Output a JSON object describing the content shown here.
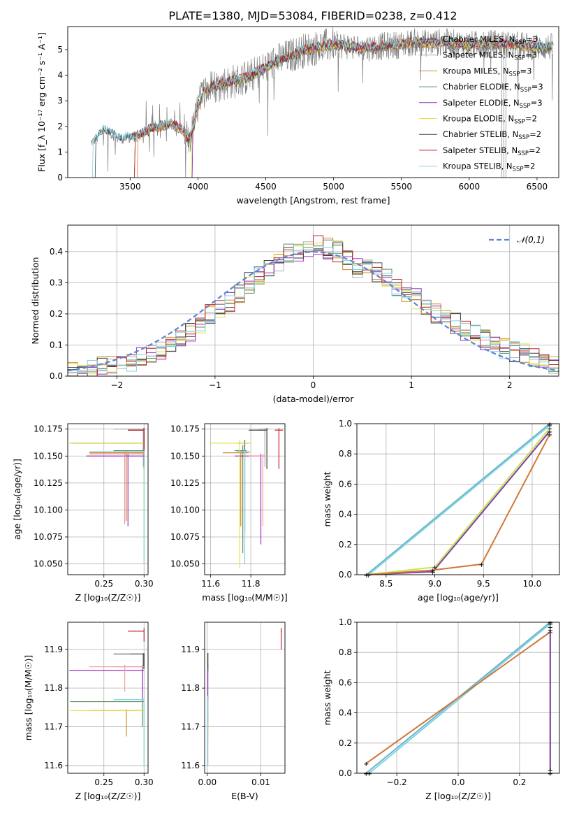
{
  "figure": {
    "title": "PLATE=1380, MJD=53084, FIBERID=0238, z=0.412"
  },
  "colors": {
    "dark_gray": "#808080",
    "c1": "#555555",
    "c2": "#b1b1b1",
    "c3": "#ce8c2a",
    "c4": "#5f8f5f",
    "c5": "#9a2fbf",
    "c6": "#e3e24a",
    "c7": "#404040",
    "c8": "#c0252d",
    "c9": "#7fd3e4",
    "gauss": "#5b84d6",
    "grid": "#b0b0b0",
    "orange_heavy": "#d0783a",
    "purple_heavy": "#7b3ea6",
    "lime_heavy": "#c8e44e",
    "teal_heavy": "#6bb6c6"
  },
  "chart_data": [
    {
      "type": "line",
      "id": "spectrum",
      "title": "PLATE=1380, MJD=53084, FIBERID=0238, z=0.412",
      "xlabel": "wavelength [Angstrom, rest frame]",
      "ylabel": "Flux [f_λ 10⁻¹⁷ erg cm⁻² s⁻¹ A⁻¹]",
      "xlim": [
        3040,
        6660
      ],
      "ylim": [
        0,
        5.9
      ],
      "xticks": [
        3500,
        4000,
        4500,
        5000,
        5500,
        6000,
        6500
      ],
      "yticks": [
        0,
        1,
        2,
        3,
        4,
        5
      ],
      "legend_position": "upper-right",
      "series": [
        {
          "name": "Chabrier MILES, N",
          "sub": "SSP",
          "suffix": "=3",
          "color_key": "c1"
        },
        {
          "name": "Salpeter MILES, N",
          "sub": "SSP",
          "suffix": "=3",
          "color_key": "c2"
        },
        {
          "name": "Kroupa MILES, N",
          "sub": "SSP",
          "suffix": "=3",
          "color_key": "c3"
        },
        {
          "name": "Chabrier ELODIE, N",
          "sub": "SSP",
          "suffix": "=3",
          "color_key": "c4"
        },
        {
          "name": "Salpeter ELODIE, N",
          "sub": "SSP",
          "suffix": "=3",
          "color_key": "c5"
        },
        {
          "name": "Kroupa ELODIE, N",
          "sub": "SSP",
          "suffix": "=2",
          "color_key": "c6"
        },
        {
          "name": "Chabrier STELIB, N",
          "sub": "SSP",
          "suffix": "=2",
          "color_key": "c7"
        },
        {
          "name": "Salpeter STELIB, N",
          "sub": "SSP",
          "suffix": "=2",
          "color_key": "c8"
        },
        {
          "name": "Kroupa STELIB, N",
          "sub": "SSP",
          "suffix": "=2",
          "color_key": "c9"
        }
      ],
      "continuum_points": [
        [
          3200,
          0
        ],
        [
          3210,
          1.35
        ],
        [
          3260,
          1.55
        ],
        [
          3300,
          1.9
        ],
        [
          3350,
          1.75
        ],
        [
          3400,
          1.55
        ],
        [
          3450,
          1.5
        ],
        [
          3500,
          1.55
        ],
        [
          3550,
          1.6
        ],
        [
          3600,
          1.75
        ],
        [
          3650,
          1.9
        ],
        [
          3700,
          2.0
        ],
        [
          3750,
          2.05
        ],
        [
          3800,
          2.1
        ],
        [
          3850,
          2.0
        ],
        [
          3900,
          1.8
        ],
        [
          3930,
          1.4
        ],
        [
          3970,
          2.0
        ],
        [
          4000,
          2.8
        ],
        [
          4050,
          3.4
        ],
        [
          4100,
          3.55
        ],
        [
          4200,
          3.7
        ],
        [
          4300,
          3.8
        ],
        [
          4400,
          4.0
        ],
        [
          4500,
          4.3
        ],
        [
          4600,
          4.6
        ],
        [
          4700,
          4.8
        ],
        [
          4800,
          5.0
        ],
        [
          4900,
          5.1
        ],
        [
          5000,
          5.2
        ],
        [
          5100,
          5.15
        ],
        [
          5200,
          5.05
        ],
        [
          5300,
          5.1
        ],
        [
          5400,
          5.15
        ],
        [
          5500,
          5.2
        ],
        [
          5600,
          5.3
        ],
        [
          5700,
          5.25
        ],
        [
          5800,
          5.3
        ],
        [
          5900,
          5.25
        ],
        [
          6000,
          5.2
        ],
        [
          6100,
          5.2
        ],
        [
          6200,
          5.25
        ],
        [
          6300,
          5.2
        ],
        [
          6400,
          5.15
        ],
        [
          6500,
          5.1
        ],
        [
          6600,
          5.1
        ]
      ]
    },
    {
      "type": "histogram",
      "id": "residuals",
      "xlabel": "(data-model)/error",
      "ylabel": "Normed distribution",
      "xlim": [
        -2.5,
        2.5
      ],
      "ylim": [
        0,
        0.485
      ],
      "xticks": [
        -2,
        -1,
        0,
        1,
        2
      ],
      "yticks": [
        0.0,
        0.1,
        0.2,
        0.3,
        0.4
      ],
      "legend": {
        "label": "𝒩(0,1)",
        "position": "upper-right"
      },
      "bin_width": 0.1,
      "bin_start": -2.5,
      "base_values": [
        0.01,
        0.012,
        0.02,
        0.03,
        0.035,
        0.04,
        0.05,
        0.06,
        0.07,
        0.085,
        0.1,
        0.12,
        0.14,
        0.17,
        0.2,
        0.22,
        0.24,
        0.27,
        0.3,
        0.33,
        0.35,
        0.37,
        0.39,
        0.4,
        0.41,
        0.42,
        0.41,
        0.4,
        0.37,
        0.35,
        0.34,
        0.33,
        0.31,
        0.29,
        0.27,
        0.25,
        0.23,
        0.2,
        0.18,
        0.17,
        0.15,
        0.13,
        0.12,
        0.1,
        0.09,
        0.08,
        0.07,
        0.06,
        0.05,
        0.04
      ]
    },
    {
      "type": "errorbar",
      "id": "age-vs-z",
      "xlabel": "Z [log₁₀(Z/Z☉)]",
      "ylabel": "age  [log₁₀(age/yr)]",
      "xlim": [
        0.205,
        0.305
      ],
      "ylim": [
        10.04,
        10.18
      ],
      "xticks": [
        0.25,
        0.3
      ],
      "yticks": [
        10.05,
        10.075,
        10.1,
        10.125,
        10.15,
        10.175
      ]
    },
    {
      "type": "errorbar",
      "id": "age-vs-mass",
      "xlabel": "mass [log₁₀(M/M☉)]",
      "xlim": [
        11.57,
        11.97
      ],
      "ylim": [
        10.04,
        10.18
      ],
      "xticks": [
        11.6,
        11.8
      ],
      "yticks": [
        10.05,
        10.075,
        10.1,
        10.125,
        10.15,
        10.175
      ]
    },
    {
      "type": "line",
      "id": "massweight-vs-age",
      "xlabel": "age  [log₁₀(age/yr)]",
      "ylabel": "mass weight",
      "xlim": [
        8.2,
        10.28
      ],
      "ylim": [
        0,
        1.0
      ],
      "xticks": [
        8.5,
        9.0,
        9.5,
        10.0
      ],
      "yticks": [
        0.0,
        0.2,
        0.4,
        0.6,
        0.8,
        1.0
      ],
      "series": [
        {
          "color_key": "teal_heavy",
          "x": [
            8.3,
            10.18
          ],
          "y": [
            0.0,
            1.0
          ]
        },
        {
          "color_key": "c9",
          "x": [
            8.32,
            10.18
          ],
          "y": [
            0.0,
            0.99
          ]
        },
        {
          "color_key": "purple_heavy",
          "x": [
            8.3,
            8.98,
            10.18
          ],
          "y": [
            0.0,
            0.02,
            0.95
          ]
        },
        {
          "color_key": "lime_heavy",
          "x": [
            8.3,
            9.0,
            10.18
          ],
          "y": [
            0.0,
            0.05,
            0.97
          ]
        },
        {
          "color_key": "orange_heavy",
          "x": [
            8.3,
            8.98,
            9.48,
            10.18
          ],
          "y": [
            0.0,
            0.03,
            0.07,
            0.93
          ]
        }
      ]
    },
    {
      "type": "errorbar",
      "id": "mass-vs-z",
      "xlabel": "Z [log₁₀(Z/Z☉)]",
      "ylabel": "mass [log₁₀(M/M☉)]",
      "xlim": [
        0.205,
        0.305
      ],
      "ylim": [
        11.58,
        11.97
      ],
      "xticks": [
        0.25,
        0.3
      ],
      "yticks": [
        11.6,
        11.7,
        11.8,
        11.9
      ]
    },
    {
      "type": "errorbar",
      "id": "mass-vs-ebv",
      "xlabel": "E(B-V)",
      "xlim": [
        -0.0005,
        0.0145
      ],
      "ylim": [
        11.58,
        11.97
      ],
      "xticks": [
        0.0,
        0.01
      ],
      "xtick_labels": [
        "0.00",
        "0.01"
      ],
      "yticks": [
        11.6,
        11.7,
        11.8,
        11.9
      ]
    },
    {
      "type": "line",
      "id": "massweight-vs-z",
      "xlabel": "Z [log₁₀(Z/Z☉)]",
      "ylabel": "mass weight",
      "xlim": [
        -0.33,
        0.33
      ],
      "ylim": [
        0,
        1.0
      ],
      "xticks": [
        -0.2,
        0.0,
        0.2
      ],
      "yticks": [
        0.0,
        0.2,
        0.4,
        0.6,
        0.8,
        1.0
      ],
      "series": [
        {
          "color_key": "teal_heavy",
          "x": [
            -0.3,
            0.3
          ],
          "y": [
            0.0,
            1.0
          ]
        },
        {
          "color_key": "c9",
          "x": [
            -0.29,
            0.3
          ],
          "y": [
            0.0,
            0.99
          ]
        },
        {
          "color_key": "orange_heavy",
          "x": [
            -0.3,
            0.3
          ],
          "y": [
            0.065,
            0.935
          ]
        },
        {
          "color_key": "lime_heavy",
          "x": [
            0.3,
            0.3
          ],
          "y": [
            0.0,
            0.97
          ]
        },
        {
          "color_key": "purple_heavy",
          "x": [
            0.3,
            0.3
          ],
          "y": [
            0.02,
            0.95
          ]
        }
      ]
    }
  ]
}
